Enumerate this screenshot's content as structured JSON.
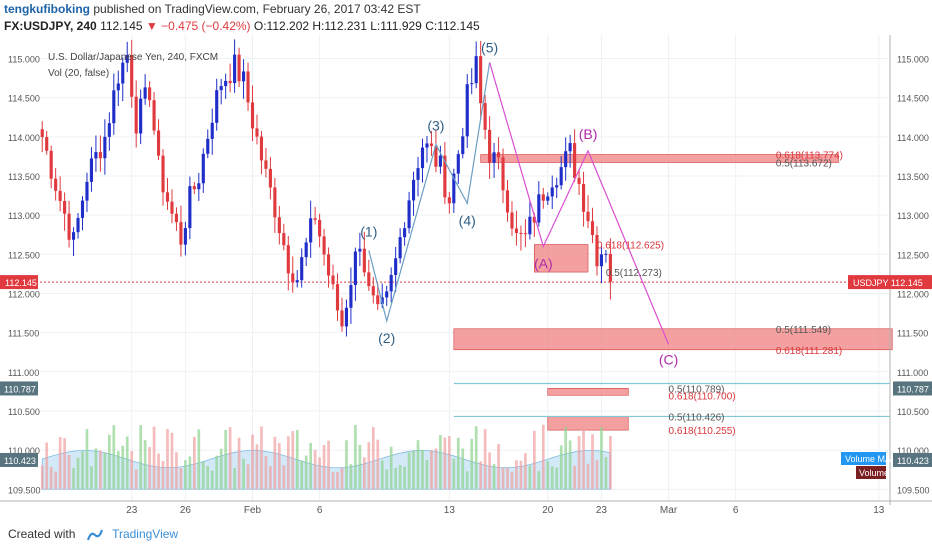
{
  "header": {
    "author": "tengkufiboking",
    "published_text": "published on TradingView.com, February 26, 2017 03:42 EST"
  },
  "quote": {
    "symbol": "FX:USDJPY, 240",
    "last": "112.145",
    "arrow": "▼",
    "change": "−0.475 (−0.42%)",
    "o": "O:112.202",
    "h": "H:112.231",
    "l": "L:111.929",
    "c": "C:112.145"
  },
  "legend": {
    "title": "U.S. Dollar/Japanese Yen, 240, FXCM",
    "vol": "Vol (20, false)"
  },
  "colors": {
    "bull": "#1f2ec9",
    "bear": "#e0393e",
    "price_line": "#e0393e",
    "wave_blue": "#6a9ec4",
    "wave_magenta": "#d94fd2",
    "zone": "#f08080",
    "teal_line": "#7ec9d3",
    "volume_ma": "#a8d4f0"
  },
  "chart_data": {
    "type": "candlestick",
    "symbol": "USDJPY",
    "interval": "240",
    "ylim": [
      109.35,
      115.3
    ],
    "yticks": [
      109.5,
      110.0,
      110.5,
      111.0,
      111.5,
      112.0,
      112.5,
      113.0,
      113.5,
      114.0,
      114.5,
      115.0
    ],
    "ytick_labels": [
      "109.500",
      "110.000",
      "110.500",
      "111.000",
      "111.500",
      "112.000",
      "112.500",
      "113.000",
      "113.500",
      "114.000",
      "114.500",
      "115.000"
    ],
    "xticks": [
      {
        "index": 20,
        "label": "23"
      },
      {
        "index": 32,
        "label": "26"
      },
      {
        "index": 47,
        "label": "Feb"
      },
      {
        "index": 62,
        "label": "6"
      },
      {
        "index": 91,
        "label": "13"
      },
      {
        "index": 113,
        "label": "20"
      },
      {
        "index": 125,
        "label": "23"
      },
      {
        "index": 140,
        "label": "Mar"
      },
      {
        "index": 155,
        "label": "6"
      },
      {
        "index": 187,
        "label": "13"
      }
    ],
    "anchors": [
      [
        0,
        114.0
      ],
      [
        4,
        113.2
      ],
      [
        7,
        112.65
      ],
      [
        10,
        113.5
      ],
      [
        14,
        114.0
      ],
      [
        17,
        114.8
      ],
      [
        19,
        115.05
      ],
      [
        21,
        114.2
      ],
      [
        24,
        114.6
      ],
      [
        26,
        113.6
      ],
      [
        29,
        113.0
      ],
      [
        31,
        112.7
      ],
      [
        33,
        113.2
      ],
      [
        35,
        113.5
      ],
      [
        38,
        114.3
      ],
      [
        40,
        114.7
      ],
      [
        43,
        114.9
      ],
      [
        45,
        114.7
      ],
      [
        47,
        114.2
      ],
      [
        50,
        113.5
      ],
      [
        52,
        113.1
      ],
      [
        55,
        112.4
      ],
      [
        57,
        112.2
      ],
      [
        59,
        112.6
      ],
      [
        61,
        113.0
      ],
      [
        63,
        112.5
      ],
      [
        65,
        112.0
      ],
      [
        67,
        111.6
      ],
      [
        69,
        112.2
      ],
      [
        71,
        112.7
      ],
      [
        73,
        112.0
      ],
      [
        75,
        111.7
      ],
      [
        77,
        111.9
      ],
      [
        79,
        112.4
      ],
      [
        81,
        113.0
      ],
      [
        83,
        113.5
      ],
      [
        85,
        113.9
      ],
      [
        87,
        113.8
      ],
      [
        89,
        113.6
      ],
      [
        91,
        113.2
      ],
      [
        93,
        113.8
      ],
      [
        95,
        114.5
      ],
      [
        97,
        114.9
      ],
      [
        98,
        114.4
      ],
      [
        100,
        113.8
      ],
      [
        102,
        113.6
      ],
      [
        104,
        113.2
      ],
      [
        106,
        112.7
      ],
      [
        108,
        112.7
      ],
      [
        110,
        113.0
      ],
      [
        112,
        113.3
      ],
      [
        114,
        113.5
      ],
      [
        116,
        113.6
      ],
      [
        118,
        113.8
      ],
      [
        120,
        113.4
      ],
      [
        122,
        113.0
      ],
      [
        124,
        112.5
      ],
      [
        126,
        112.6
      ],
      [
        127,
        112.15
      ]
    ],
    "last_price": 112.145,
    "last_price_label": "112.145",
    "symbol_tag": "USDJPY",
    "wave_labels": [
      "(1)",
      "(2)",
      "(3)",
      "(4)",
      "(5)"
    ],
    "wave_points": [
      {
        "index": 73,
        "price": 112.55
      },
      {
        "index": 77,
        "price": 111.65
      },
      {
        "index": 88,
        "price": 113.9
      },
      {
        "index": 95,
        "price": 113.15
      },
      {
        "index": 100,
        "price": 114.95
      }
    ],
    "correction_labels": [
      "(A)",
      "(B)",
      "(C)"
    ],
    "correction_points": [
      {
        "index": 112,
        "price": 112.6
      },
      {
        "index": 122,
        "price": 113.82
      },
      {
        "index": 140,
        "price": 111.35
      }
    ],
    "fib_levels": [
      {
        "label": "0.618(113.774)",
        "price": 113.774
      },
      {
        "label": "0.5(113.672)",
        "price": 113.672
      },
      {
        "label": "0.618(112.625)",
        "price": 112.625
      },
      {
        "label": "0.5(112.273)",
        "price": 112.273
      },
      {
        "label": "0.5(111.549)",
        "price": 111.549
      },
      {
        "label": "0.618(111.281)",
        "price": 111.281
      },
      {
        "label": "0.5(110.789)",
        "price": 110.789
      },
      {
        "label": "0.618(110.700)",
        "price": 110.7
      },
      {
        "label": "0.5(110.426)",
        "price": 110.426
      },
      {
        "label": "0.618(110.255)",
        "price": 110.255
      }
    ],
    "zones": [
      {
        "from_index": 98,
        "to_index": 178,
        "low": 113.672,
        "high": 113.774
      },
      {
        "from_index": 110,
        "to_index": 122,
        "low": 112.273,
        "high": 112.625
      },
      {
        "from_index": 92,
        "to_index": 190,
        "low": 111.281,
        "high": 111.549
      },
      {
        "from_index": 113,
        "to_index": 131,
        "low": 110.7,
        "high": 110.789
      },
      {
        "from_index": 113,
        "to_index": 131,
        "low": 110.255,
        "high": 110.426
      }
    ],
    "volume_scale_labels": [
      {
        "label": "110.787",
        "price": 110.787
      },
      {
        "label": "110.423",
        "price": 110.423
      }
    ],
    "volume_ma_label": "Volume MA",
    "volume_label": "Volume"
  },
  "footer": {
    "created_with": "Created with",
    "brand": "TradingView"
  }
}
